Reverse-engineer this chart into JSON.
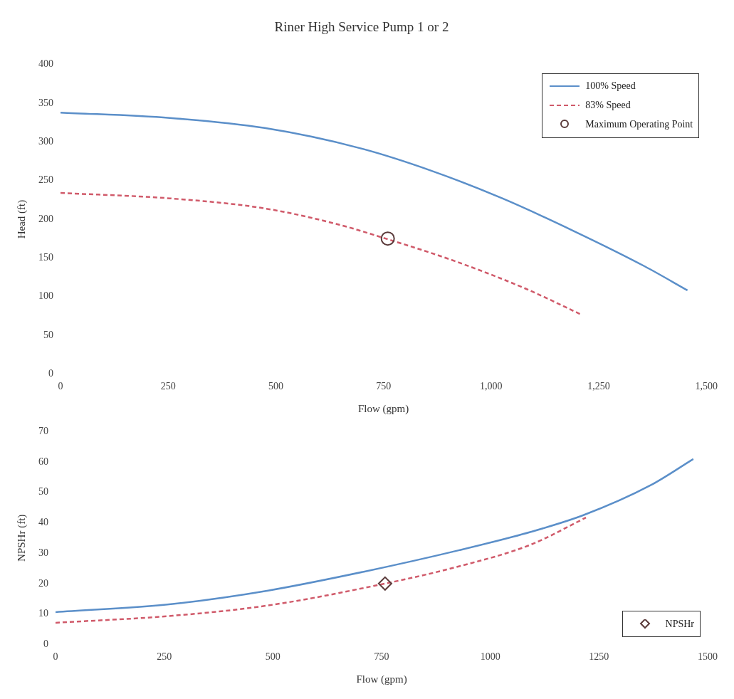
{
  "chart_data": [
    {
      "type": "line",
      "title": "Riner High Service Pump 1 or 2",
      "xlabel": "Flow (gpm)",
      "ylabel": "Head (ft)",
      "xlim": [
        0,
        1500
      ],
      "xticks": [
        0,
        250,
        500,
        750,
        {
          "value": 1000,
          "label": "1,000"
        },
        {
          "value": 1250,
          "label": "1,250"
        },
        {
          "value": 1500,
          "label": "1,500"
        }
      ],
      "ylim": [
        0,
        400
      ],
      "yticks": [
        0,
        50,
        100,
        150,
        200,
        250,
        300,
        350,
        400
      ],
      "legend": "top right",
      "series": [
        {
          "name": "100% Speed",
          "type": "line",
          "color": "#5b8fc9",
          "line_style": "solid",
          "marker": "none",
          "x": [
            0,
            254,
            474,
            695,
            860,
            1026,
            1191,
            1357,
            1456
          ],
          "values": [
            338,
            331,
            318,
            292,
            263,
            227,
            185,
            139,
            108
          ]
        },
        {
          "name": "83% Speed",
          "type": "line",
          "color": "#d05a6a",
          "line_style": "dashed",
          "marker": "none",
          "x": [
            0,
            254,
            474,
            640,
            755,
            915,
            1081,
            1208
          ],
          "values": [
            234,
            227,
            214,
            194,
            175,
            146,
            110,
            77
          ]
        },
        {
          "name": "Maximum Operating Point",
          "type": "scatter",
          "color": "#5a3a3a",
          "marker": "circle",
          "x": [
            760
          ],
          "values": [
            175
          ]
        }
      ]
    },
    {
      "type": "line",
      "xlabel": "Flow (gpm)",
      "ylabel": "NPSHr (ft)",
      "xlim": [
        0,
        1500
      ],
      "xticks": [
        0,
        250,
        500,
        750,
        1000,
        1250,
        1500
      ],
      "ylim": [
        0,
        70
      ],
      "yticks": [
        0,
        10,
        20,
        30,
        40,
        50,
        60,
        70
      ],
      "legend": "bottom right",
      "series": [
        {
          "type": "line",
          "color": "#5b8fc9",
          "line_style": "solid",
          "marker": "none",
          "x": [
            0,
            269,
            489,
            709,
            929,
            1093,
            1214,
            1368,
            1467
          ],
          "values": [
            10.6,
            13.3,
            17.7,
            23.9,
            31,
            37,
            42.5,
            52.3,
            61
          ]
        },
        {
          "type": "line",
          "color": "#d05a6a",
          "line_style": "dashed",
          "marker": "none",
          "x": [
            0,
            269,
            489,
            758,
            929,
            1093,
            1220
          ],
          "values": [
            7.1,
            9.4,
            12.8,
            20,
            25.7,
            32.8,
            41.7
          ]
        },
        {
          "name": "NPSHr",
          "type": "scatter",
          "color": "#5a3a3a",
          "marker": "diamond",
          "x": [
            758
          ],
          "values": [
            20
          ]
        }
      ]
    }
  ]
}
